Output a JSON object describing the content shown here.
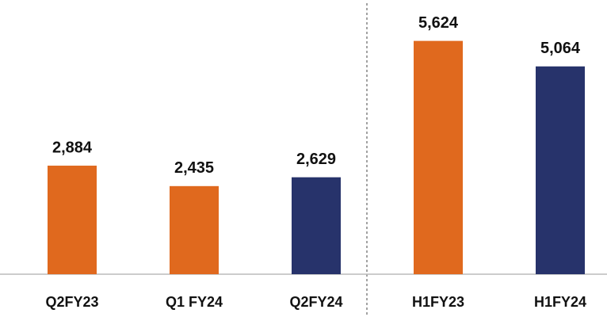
{
  "chart_data": {
    "type": "bar",
    "categories": [
      "Q2FY23",
      "Q1 FY24",
      "Q2FY24",
      "H1FY23",
      "H1FY24"
    ],
    "values": [
      2884,
      2435,
      2629,
      5624,
      5064
    ],
    "value_labels": [
      "2,884",
      "2,435",
      "2,629",
      "5,624",
      "5,064"
    ],
    "colors": [
      "#e0691e",
      "#e0691e",
      "#27336b",
      "#e0691e",
      "#27336b"
    ],
    "ylim": [
      500,
      6000
    ]
  }
}
